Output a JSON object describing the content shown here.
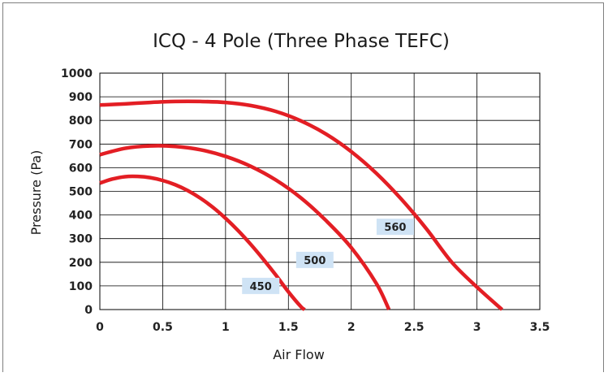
{
  "chart_data": {
    "type": "line",
    "title": "ICQ - 4 Pole (Three Phase TEFC)",
    "xlabel": "Air Flow",
    "ylabel": "Pressure (Pa)",
    "xlim": [
      0,
      3.5
    ],
    "ylim": [
      0,
      1000
    ],
    "x_ticks": [
      "0",
      "0.5",
      "1",
      "1.5",
      "2",
      "2.5",
      "3",
      "3.5"
    ],
    "y_ticks": [
      "0",
      "100",
      "200",
      "300",
      "400",
      "500",
      "600",
      "700",
      "800",
      "900",
      "1000"
    ],
    "grid": true,
    "legend": "none",
    "series_color": "#e31e24",
    "label_box_color": "#cfe3f5",
    "series": [
      {
        "name": "450",
        "x": [
          0,
          0.1,
          0.2,
          0.3,
          0.4,
          0.5,
          0.6,
          0.7,
          0.8,
          0.9,
          1.0,
          1.1,
          1.2,
          1.3,
          1.4,
          1.5,
          1.6,
          1.63
        ],
        "values": [
          535,
          552,
          562,
          563,
          558,
          546,
          528,
          503,
          471,
          432,
          386,
          334,
          276,
          213,
          146,
          75,
          12,
          0
        ]
      },
      {
        "name": "500",
        "x": [
          0,
          0.2,
          0.4,
          0.6,
          0.8,
          1.0,
          1.2,
          1.4,
          1.6,
          1.8,
          2.0,
          2.2,
          2.3
        ],
        "values": [
          655,
          682,
          692,
          690,
          676,
          648,
          606,
          548,
          472,
          376,
          262,
          110,
          0
        ]
      },
      {
        "name": "560",
        "x": [
          0,
          0.2,
          0.4,
          0.6,
          0.8,
          1.0,
          1.2,
          1.4,
          1.6,
          1.8,
          2.0,
          2.2,
          2.4,
          2.6,
          2.8,
          3.0,
          3.2
        ],
        "values": [
          865,
          870,
          876,
          880,
          880,
          876,
          863,
          838,
          798,
          742,
          668,
          576,
          466,
          340,
          200,
          95,
          0
        ]
      }
    ],
    "curve_labels": [
      {
        "text": "450",
        "x": 1.28,
        "y": 100
      },
      {
        "text": "500",
        "x": 1.71,
        "y": 210
      },
      {
        "text": "560",
        "x": 2.35,
        "y": 350
      }
    ]
  }
}
